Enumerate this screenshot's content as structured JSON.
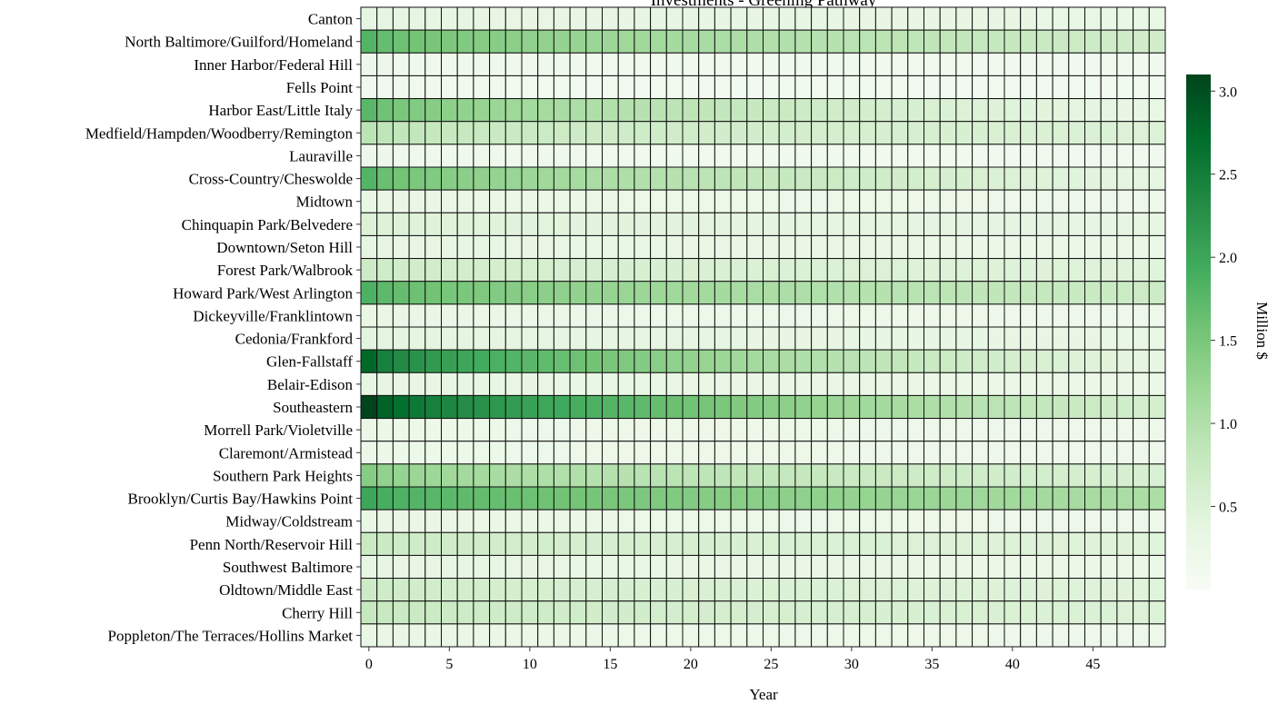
{
  "chart_data": {
    "type": "heatmap",
    "title": "Investments - Greening Pathway",
    "xlabel": "Year",
    "colorbar_label": "Million $",
    "x": [
      0,
      1,
      2,
      3,
      4,
      5,
      6,
      7,
      8,
      9,
      10,
      11,
      12,
      13,
      14,
      15,
      16,
      17,
      18,
      19,
      20,
      21,
      22,
      23,
      24,
      25,
      26,
      27,
      28,
      29,
      30,
      31,
      32,
      33,
      34,
      35,
      36,
      37,
      38,
      39,
      40,
      41,
      42,
      43,
      44,
      45,
      46,
      47,
      48,
      49
    ],
    "x_ticks": [
      0,
      5,
      10,
      15,
      20,
      25,
      30,
      35,
      40,
      45
    ],
    "color_range": [
      0,
      3.1
    ],
    "color_ticks": [
      0.5,
      1.0,
      1.5,
      2.0,
      2.5,
      3.0
    ],
    "colormap": [
      "#f7fcf5",
      "#e5f5e0",
      "#c7e9c0",
      "#a1d99b",
      "#74c476",
      "#41ab5d",
      "#238b45",
      "#006d2c",
      "#00441b"
    ],
    "rows": [
      {
        "label": "Canton",
        "start": 0.35,
        "end": 0.3
      },
      {
        "label": "North Baltimore/Guilford/Homeland",
        "start": 1.8,
        "end": 0.65
      },
      {
        "label": "Inner Harbor/Federal Hill",
        "start": 0.2,
        "end": 0.15
      },
      {
        "label": "Fells Point",
        "start": 0.15,
        "end": 0.12
      },
      {
        "label": "Harbor East/Little Italy",
        "start": 1.75,
        "end": 0.3
      },
      {
        "label": "Medfield/Hampden/Woodberry/Remington",
        "start": 0.9,
        "end": 0.5
      },
      {
        "label": "Lauraville",
        "start": 0.2,
        "end": 0.15
      },
      {
        "label": "Cross-Country/Cheswolde",
        "start": 1.8,
        "end": 0.35
      },
      {
        "label": "Midtown",
        "start": 0.3,
        "end": 0.2
      },
      {
        "label": "Chinquapin Park/Belvedere",
        "start": 0.5,
        "end": 0.35
      },
      {
        "label": "Downtown/Seton Hill",
        "start": 0.35,
        "end": 0.25
      },
      {
        "label": "Forest Park/Walbrook",
        "start": 0.7,
        "end": 0.45
      },
      {
        "label": "Howard Park/West Arlington",
        "start": 1.85,
        "end": 0.7
      },
      {
        "label": "Dickeyville/Franklintown",
        "start": 0.3,
        "end": 0.2
      },
      {
        "label": "Cedonia/Frankford",
        "start": 0.4,
        "end": 0.3
      },
      {
        "label": "Glen-Fallstaff",
        "start": 2.75,
        "end": 0.35
      },
      {
        "label": "Belair-Edison",
        "start": 0.35,
        "end": 0.25
      },
      {
        "label": "Southeastern",
        "start": 3.1,
        "end": 0.6
      },
      {
        "label": "Morrell Park/Violetville",
        "start": 0.25,
        "end": 0.2
      },
      {
        "label": "Claremont/Armistead",
        "start": 0.25,
        "end": 0.2
      },
      {
        "label": "Southern Park Heights",
        "start": 1.4,
        "end": 0.55
      },
      {
        "label": "Brooklyn/Curtis Bay/Hawkins Point",
        "start": 2.0,
        "end": 1.05
      },
      {
        "label": "Midway/Coldstream",
        "start": 0.3,
        "end": 0.2
      },
      {
        "label": "Penn North/Reservoir Hill",
        "start": 0.75,
        "end": 0.45
      },
      {
        "label": "Southwest Baltimore",
        "start": 0.35,
        "end": 0.25
      },
      {
        "label": "Oldtown/Middle East",
        "start": 0.7,
        "end": 0.45
      },
      {
        "label": "Cherry Hill",
        "start": 0.8,
        "end": 0.5
      },
      {
        "label": "Poppleton/The Terraces/Hollins Market",
        "start": 0.3,
        "end": 0.2
      }
    ],
    "grid": true
  }
}
